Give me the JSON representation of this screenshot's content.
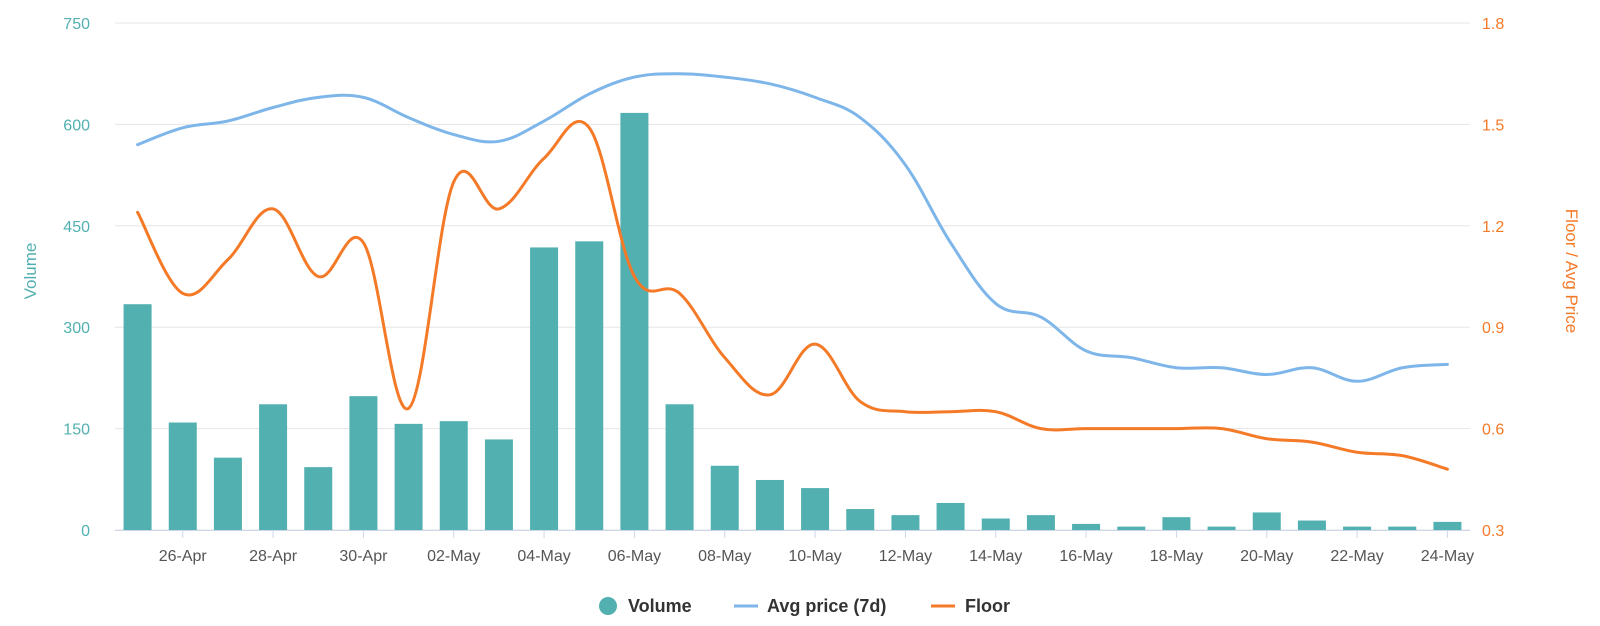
{
  "chart_data": {
    "type": "bar",
    "categories": [
      "25-Apr",
      "26-Apr",
      "27-Apr",
      "28-Apr",
      "29-Apr",
      "30-Apr",
      "01-May",
      "02-May",
      "03-May",
      "04-May",
      "05-May",
      "06-May",
      "07-May",
      "08-May",
      "09-May",
      "10-May",
      "11-May",
      "12-May",
      "13-May",
      "14-May",
      "15-May",
      "16-May",
      "17-May",
      "18-May",
      "19-May",
      "20-May",
      "21-May",
      "22-May",
      "23-May",
      "24-May"
    ],
    "x_tick_labels": [
      "26-Apr",
      "28-Apr",
      "30-Apr",
      "02-May",
      "04-May",
      "06-May",
      "08-May",
      "10-May",
      "12-May",
      "14-May",
      "16-May",
      "18-May",
      "20-May",
      "22-May",
      "24-May"
    ],
    "series": [
      {
        "name": "Volume",
        "type": "bar",
        "axis": "left",
        "color": "#52b0b0",
        "values": [
          334,
          159,
          107,
          186,
          93,
          198,
          157,
          161,
          134,
          418,
          427,
          617,
          186,
          95,
          74,
          62,
          31,
          22,
          40,
          17,
          22,
          9,
          5,
          19,
          5,
          26,
          14,
          5,
          5,
          12
        ]
      },
      {
        "name": "Avg price (7d)",
        "type": "line",
        "axis": "right",
        "color": "#7eb6ea",
        "values": [
          1.44,
          1.49,
          1.51,
          1.55,
          1.58,
          1.58,
          1.52,
          1.47,
          1.45,
          1.51,
          1.59,
          1.64,
          1.65,
          1.64,
          1.62,
          1.58,
          1.52,
          1.38,
          1.15,
          0.97,
          0.93,
          0.83,
          0.81,
          0.78,
          0.78,
          0.76,
          0.78,
          0.74,
          0.78,
          0.79
        ]
      },
      {
        "name": "Floor",
        "type": "line",
        "axis": "right",
        "color": "#f47a28",
        "values": [
          1.24,
          1.0,
          1.1,
          1.25,
          1.05,
          1.15,
          0.66,
          1.33,
          1.25,
          1.4,
          1.49,
          1.05,
          1.0,
          0.81,
          0.7,
          0.85,
          0.68,
          0.65,
          0.65,
          0.65,
          0.6,
          0.6,
          0.6,
          0.6,
          0.6,
          0.57,
          0.56,
          0.53,
          0.52,
          0.48
        ]
      }
    ],
    "y_left": {
      "label": "Volume",
      "range": [
        0,
        750
      ],
      "ticks": [
        "0",
        "150",
        "300",
        "450",
        "600",
        "750"
      ],
      "color": "#52b0b0"
    },
    "y_right": {
      "label": "Floor / Avg Price",
      "range": [
        0.3,
        1.8
      ],
      "ticks": [
        "0.3",
        "0.6",
        "0.9",
        "1.2",
        "1.5",
        "1.8"
      ],
      "color": "#f47a28"
    },
    "grid": true,
    "legend_position": "bottom-center",
    "title": ""
  }
}
